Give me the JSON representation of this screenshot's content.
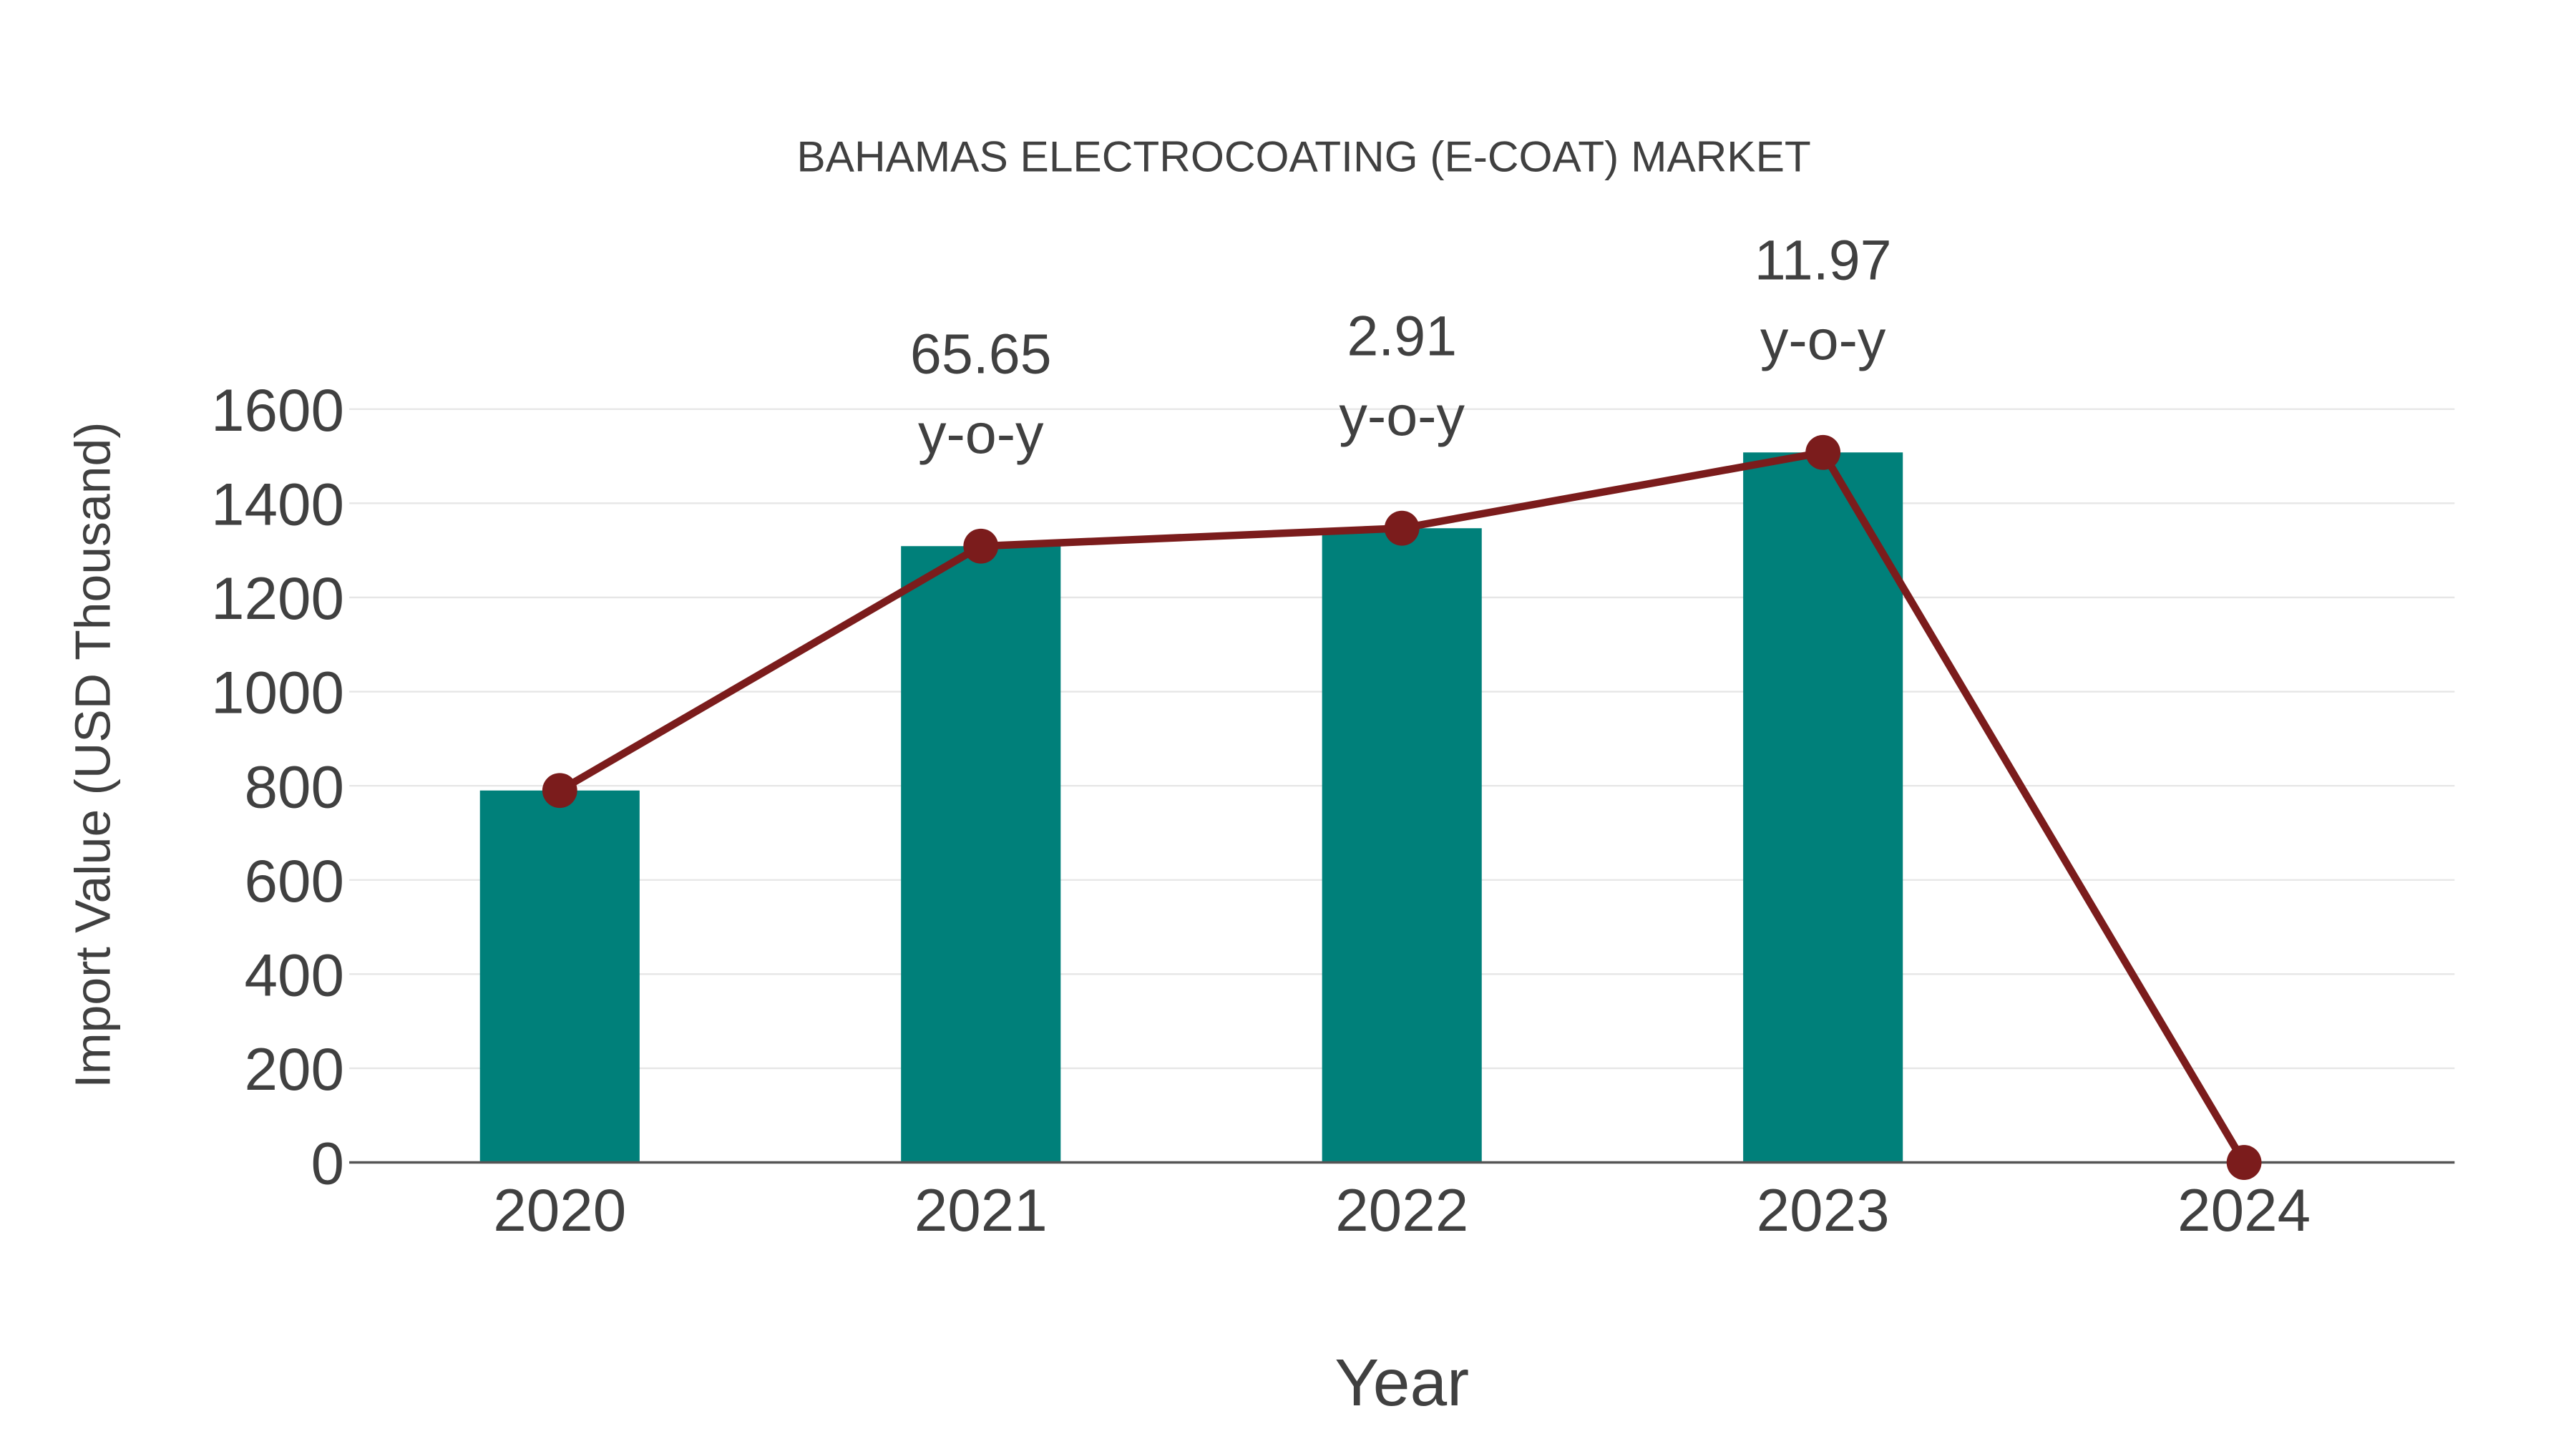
{
  "chart_data": {
    "type": "bar",
    "title": "BAHAMAS ELECTROCOATING (E-COAT) MARKET",
    "xlabel": "Year",
    "ylabel": "Import Value (USD Thousand)",
    "categories": [
      "2020",
      "2021",
      "2022",
      "2023",
      "2024"
    ],
    "series": [
      {
        "name": "Import Value",
        "kind": "bar",
        "color": "#00807a",
        "values": [
          790,
          1309,
          1347,
          1508,
          0
        ]
      },
      {
        "name": "Trend",
        "kind": "line",
        "color": "#7b1c1c",
        "values": [
          790,
          1309,
          1347,
          1508,
          0
        ]
      }
    ],
    "annotations": [
      {
        "category": "2021",
        "value": "65.65",
        "suffix": "y-o-y"
      },
      {
        "category": "2022",
        "value": "2.91",
        "suffix": "y-o-y"
      },
      {
        "category": "2023",
        "value": "11.97",
        "suffix": "y-o-y"
      }
    ],
    "yticks": [
      "0",
      "200",
      "400",
      "600",
      "800",
      "1000",
      "1200",
      "1400",
      "1600"
    ],
    "ylim": [
      0,
      1600
    ],
    "grid": true,
    "legend": "none"
  }
}
